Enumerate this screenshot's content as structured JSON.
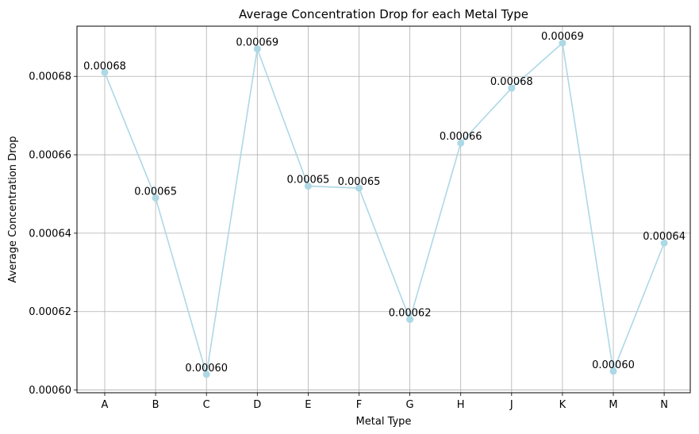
{
  "chart_data": {
    "type": "line",
    "title": "Average Concentration Drop for each Metal Type",
    "xlabel": "Metal Type",
    "ylabel": "Average Concentration Drop",
    "categories": [
      "A",
      "B",
      "C",
      "D",
      "E",
      "F",
      "G",
      "H",
      "J",
      "K",
      "M",
      "N"
    ],
    "series": [
      {
        "values": [
          0.000681,
          0.000649,
          0.000604,
          0.000687,
          0.000652,
          0.0006515,
          0.000618,
          0.000663,
          0.000677,
          0.0006885,
          0.0006048,
          0.0006375
        ],
        "labels": [
          "0.00068",
          "0.00065",
          "0.00060",
          "0.00069",
          "0.00065",
          "0.00065",
          "0.00062",
          "0.00066",
          "0.00068",
          "0.00069",
          "0.00060",
          "0.00064"
        ],
        "color": "#add8e6"
      }
    ],
    "ylim": [
      0.0005993,
      0.0006928
    ],
    "yticks": [
      0.0006,
      0.00062,
      0.00064,
      0.00066,
      0.00068
    ],
    "ytick_labels": [
      "0.00060",
      "0.00062",
      "0.00064",
      "0.00066",
      "0.00068"
    ],
    "grid": true,
    "marker": "circle"
  }
}
